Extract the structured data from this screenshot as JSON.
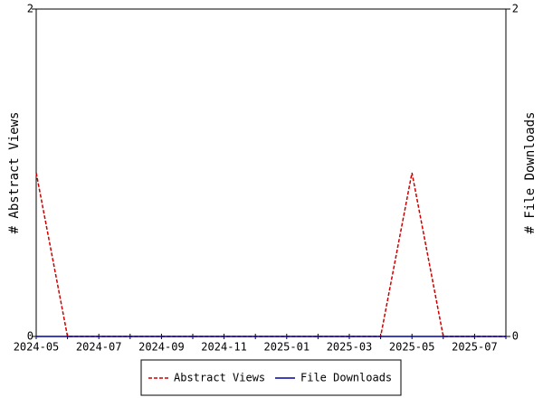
{
  "chart_data": {
    "type": "line",
    "categories": [
      "2024-05",
      null,
      "2024-07",
      null,
      "2024-09",
      null,
      "2024-11",
      null,
      "2025-01",
      null,
      "2025-03",
      null,
      "2025-05",
      null,
      "2025-07",
      null
    ],
    "ylabel": "# Abstract Views",
    "y2label": "# File Downloads",
    "ylim": [
      0,
      2
    ],
    "yticks": [
      0,
      2
    ],
    "y2lim": [
      0,
      2
    ],
    "y2ticks": [
      0,
      2
    ],
    "series": [
      {
        "name": "Abstract Views",
        "color": "#cc0000",
        "dashed": true,
        "values": [
          1,
          0,
          0,
          0,
          0,
          0,
          0,
          0,
          0,
          0,
          0,
          0,
          1,
          0,
          0,
          0
        ]
      },
      {
        "name": "File Downloads",
        "color": "#0000a0",
        "dashed": false,
        "axis": "y2",
        "values": [
          0,
          0,
          0,
          0,
          0,
          0,
          0,
          0,
          0,
          0,
          0,
          0,
          0,
          0,
          0,
          0
        ]
      }
    ]
  }
}
